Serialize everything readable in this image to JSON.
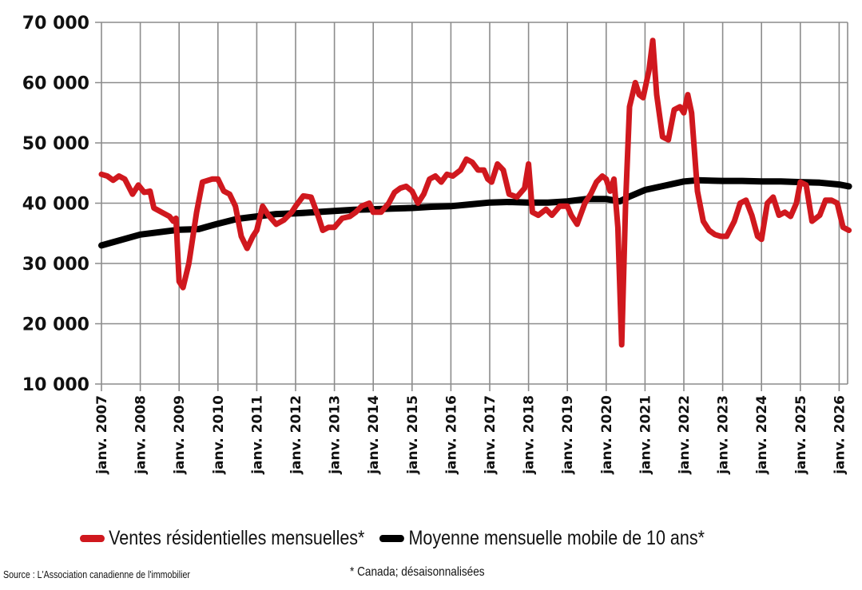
{
  "chart_data": {
    "type": "line",
    "title": "",
    "xlabel": "",
    "ylabel": "",
    "ylim": [
      10000,
      70000
    ],
    "yticks": [
      10000,
      20000,
      30000,
      40000,
      50000,
      60000,
      70000
    ],
    "ytick_labels": [
      "10 000",
      "20 000",
      "30 000",
      "40 000",
      "50 000",
      "60 000",
      "70 000"
    ],
    "xlim": [
      2007.0,
      2026.25
    ],
    "xtick_labels": [
      "janv. 2007",
      "janv. 2008",
      "janv. 2009",
      "janv. 2010",
      "janv. 2011",
      "janv. 2012",
      "janv. 2013",
      "janv. 2014",
      "janv. 2015",
      "janv. 2016",
      "janv. 2017",
      "janv. 2018",
      "janv. 2019",
      "janv. 2020",
      "janv. 2021",
      "janv. 2022",
      "janv. 2023",
      "janv. 2024",
      "janv. 2025",
      "janv. 2026"
    ],
    "grid": true,
    "legend_position": "bottom",
    "series": [
      {
        "name": "Ventes résidentielles mensuelles*",
        "color": "#d0181e",
        "x": [
          2007.0,
          2007.15,
          2007.3,
          2007.45,
          2007.6,
          2007.8,
          2007.95,
          2008.1,
          2008.25,
          2008.35,
          2008.55,
          2008.75,
          2008.85,
          2008.92,
          2009.0,
          2009.1,
          2009.25,
          2009.45,
          2009.6,
          2009.75,
          2009.85,
          2010.0,
          2010.15,
          2010.3,
          2010.45,
          2010.6,
          2010.75,
          2010.9,
          2011.0,
          2011.15,
          2011.3,
          2011.5,
          2011.7,
          2011.9,
          2012.0,
          2012.2,
          2012.4,
          2012.6,
          2012.7,
          2012.85,
          2013.0,
          2013.2,
          2013.4,
          2013.55,
          2013.7,
          2013.9,
          2014.0,
          2014.2,
          2014.4,
          2014.55,
          2014.7,
          2014.85,
          2015.0,
          2015.15,
          2015.3,
          2015.45,
          2015.6,
          2015.75,
          2015.9,
          2016.05,
          2016.25,
          2016.4,
          2016.55,
          2016.7,
          2016.85,
          2016.95,
          2017.05,
          2017.2,
          2017.35,
          2017.5,
          2017.7,
          2017.9,
          2018.0,
          2018.1,
          2018.25,
          2018.45,
          2018.6,
          2018.8,
          2019.0,
          2019.1,
          2019.25,
          2019.45,
          2019.6,
          2019.75,
          2019.9,
          2020.0,
          2020.1,
          2020.2,
          2020.3,
          2020.4,
          2020.5,
          2020.6,
          2020.75,
          2020.85,
          2020.95,
          2021.1,
          2021.2,
          2021.3,
          2021.45,
          2021.6,
          2021.75,
          2021.9,
          2022.0,
          2022.1,
          2022.2,
          2022.35,
          2022.5,
          2022.65,
          2022.8,
          2022.95,
          2023.1,
          2023.3,
          2023.45,
          2023.6,
          2023.75,
          2023.9,
          2024.0,
          2024.15,
          2024.3,
          2024.45,
          2024.6,
          2024.75,
          2024.9,
          2025.0,
          2025.15,
          2025.3,
          2025.5,
          2025.65,
          2025.8,
          2025.95,
          2026.1,
          2026.25
        ],
        "values": [
          44800,
          44500,
          43800,
          44500,
          44000,
          41500,
          43000,
          41800,
          42000,
          39200,
          38500,
          37800,
          37000,
          37500,
          27000,
          26000,
          30000,
          38500,
          43500,
          43800,
          44000,
          44000,
          42000,
          41500,
          39500,
          34500,
          32500,
          34500,
          35500,
          39500,
          38000,
          36500,
          37200,
          38500,
          39500,
          41200,
          41000,
          37500,
          35500,
          36000,
          36000,
          37500,
          37800,
          38500,
          39500,
          40000,
          38500,
          38500,
          40000,
          41800,
          42500,
          42800,
          42000,
          40000,
          41500,
          44000,
          44500,
          43500,
          44800,
          44500,
          45500,
          47300,
          46800,
          45500,
          45500,
          44000,
          43500,
          46500,
          45500,
          41500,
          41000,
          42500,
          46500,
          38500,
          38000,
          39000,
          38000,
          39500,
          39500,
          38000,
          36500,
          40000,
          41500,
          43500,
          44500,
          44000,
          42000,
          44000,
          36000,
          16500,
          40000,
          56000,
          60000,
          58000,
          57500,
          62000,
          67000,
          58000,
          51000,
          50500,
          55500,
          56000,
          55000,
          58000,
          55000,
          42000,
          37000,
          35500,
          34800,
          34500,
          34500,
          37000,
          40000,
          40500,
          38000,
          34500,
          34000,
          40000,
          41000,
          38000,
          38500,
          37800,
          40000,
          43500,
          43000,
          37000,
          38000,
          40500,
          40500,
          40000,
          36000,
          35500
        ]
      },
      {
        "name": "Moyenne mensuelle mobile de 10 ans*",
        "color": "#000000",
        "x": [
          2007.0,
          2008.0,
          2009.0,
          2009.5,
          2010.0,
          2010.5,
          2011.0,
          2011.5,
          2012.0,
          2012.5,
          2013.0,
          2013.5,
          2014.0,
          2014.5,
          2015.0,
          2015.5,
          2016.0,
          2016.5,
          2017.0,
          2017.5,
          2018.0,
          2018.5,
          2019.0,
          2019.5,
          2020.0,
          2020.35,
          2020.6,
          2021.0,
          2021.5,
          2022.0,
          2022.35,
          2023.0,
          2023.5,
          2024.0,
          2024.5,
          2025.0,
          2025.5,
          2026.0,
          2026.25
        ],
        "values": [
          33000,
          34800,
          35600,
          35700,
          36600,
          37400,
          37800,
          38200,
          38300,
          38500,
          38700,
          38900,
          39000,
          39100,
          39200,
          39400,
          39500,
          39800,
          40100,
          40200,
          40100,
          40100,
          40300,
          40700,
          40700,
          40300,
          41100,
          42200,
          42900,
          43600,
          43800,
          43700,
          43700,
          43600,
          43600,
          43500,
          43400,
          43100,
          42800
        ]
      }
    ]
  },
  "legend": {
    "items": [
      {
        "label": "Ventes résidentielles mensuelles*",
        "color": "#d0181e"
      },
      {
        "label": "Moyenne mensuelle mobile de 10 ans*",
        "color": "#000000"
      }
    ]
  },
  "footer": {
    "source": "Source : L'Association canadienne de l'immobilier",
    "note": "* Canada; désaisonnalisées"
  }
}
